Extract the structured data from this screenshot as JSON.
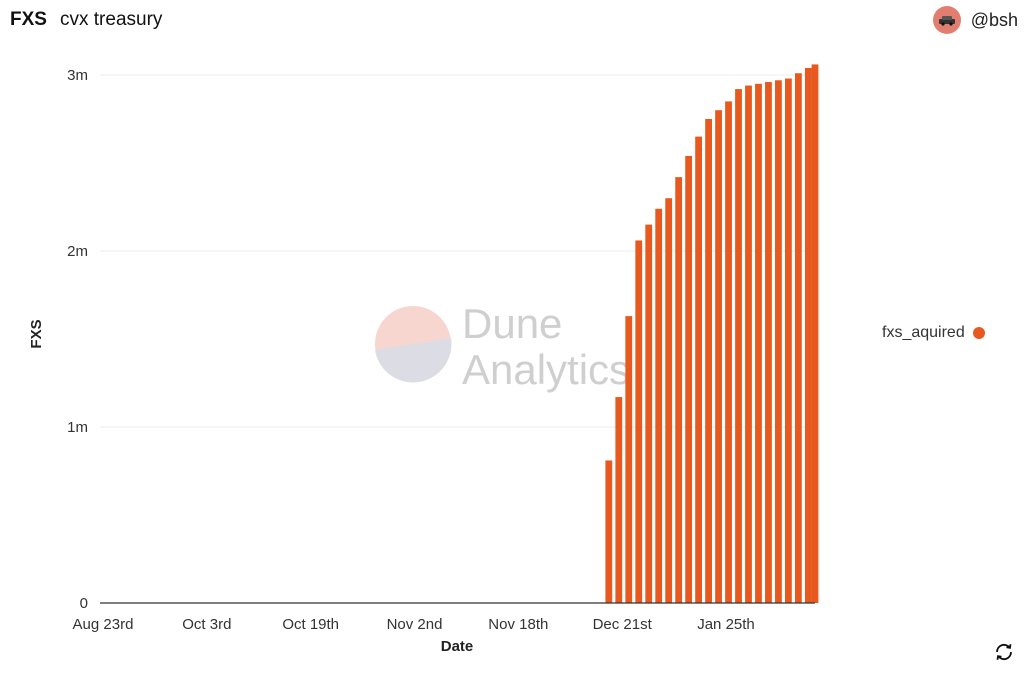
{
  "header": {
    "brand": "FXS",
    "title": "cvx treasury",
    "username": "@bsh"
  },
  "watermark": {
    "line1": "Dune",
    "line2": "Analytics"
  },
  "colors": {
    "bar": "#e8591f",
    "avatar": "#e27e70"
  },
  "icons": {
    "avatar": "car-avatar-icon",
    "refresh": "refresh-icon"
  },
  "chart_data": {
    "type": "bar",
    "xlabel": "Date",
    "ylabel": "FXS",
    "y_ticks": [
      0,
      1000000,
      2000000,
      3000000
    ],
    "y_tick_labels": [
      "0",
      "1m",
      "2m",
      "3m"
    ],
    "ylim": [
      0,
      3000000
    ],
    "x_ticks": [
      "2021-08-23",
      "2021-10-03",
      "2021-10-19",
      "2021-11-02",
      "2021-11-18",
      "2021-12-21",
      "2022-01-25"
    ],
    "x_tick_labels": [
      "Aug 23rd",
      "Oct 3rd",
      "Oct 19th",
      "Nov 2nd",
      "Nov 18th",
      "Dec 21st",
      "Jan 25th"
    ],
    "xlim": [
      "2021-07-21",
      "2022-02-21"
    ],
    "grid": true,
    "legend_position": "right",
    "series": [
      {
        "name": "fxs_aquired",
        "x": [
          "2021-12-21",
          "2021-12-24",
          "2021-12-27",
          "2021-12-30",
          "2022-01-02",
          "2022-01-05",
          "2022-01-08",
          "2022-01-11",
          "2022-01-14",
          "2022-01-17",
          "2022-01-20",
          "2022-01-23",
          "2022-01-26",
          "2022-01-29",
          "2022-02-01",
          "2022-02-04",
          "2022-02-07",
          "2022-02-10",
          "2022-02-13",
          "2022-02-16",
          "2022-02-19",
          "2022-02-21"
        ],
        "values": [
          810000,
          1170000,
          1630000,
          2060000,
          2150000,
          2240000,
          2300000,
          2420000,
          2540000,
          2650000,
          2750000,
          2800000,
          2850000,
          2920000,
          2940000,
          2950000,
          2960000,
          2970000,
          2980000,
          3010000,
          3040000,
          3060000
        ]
      }
    ]
  }
}
